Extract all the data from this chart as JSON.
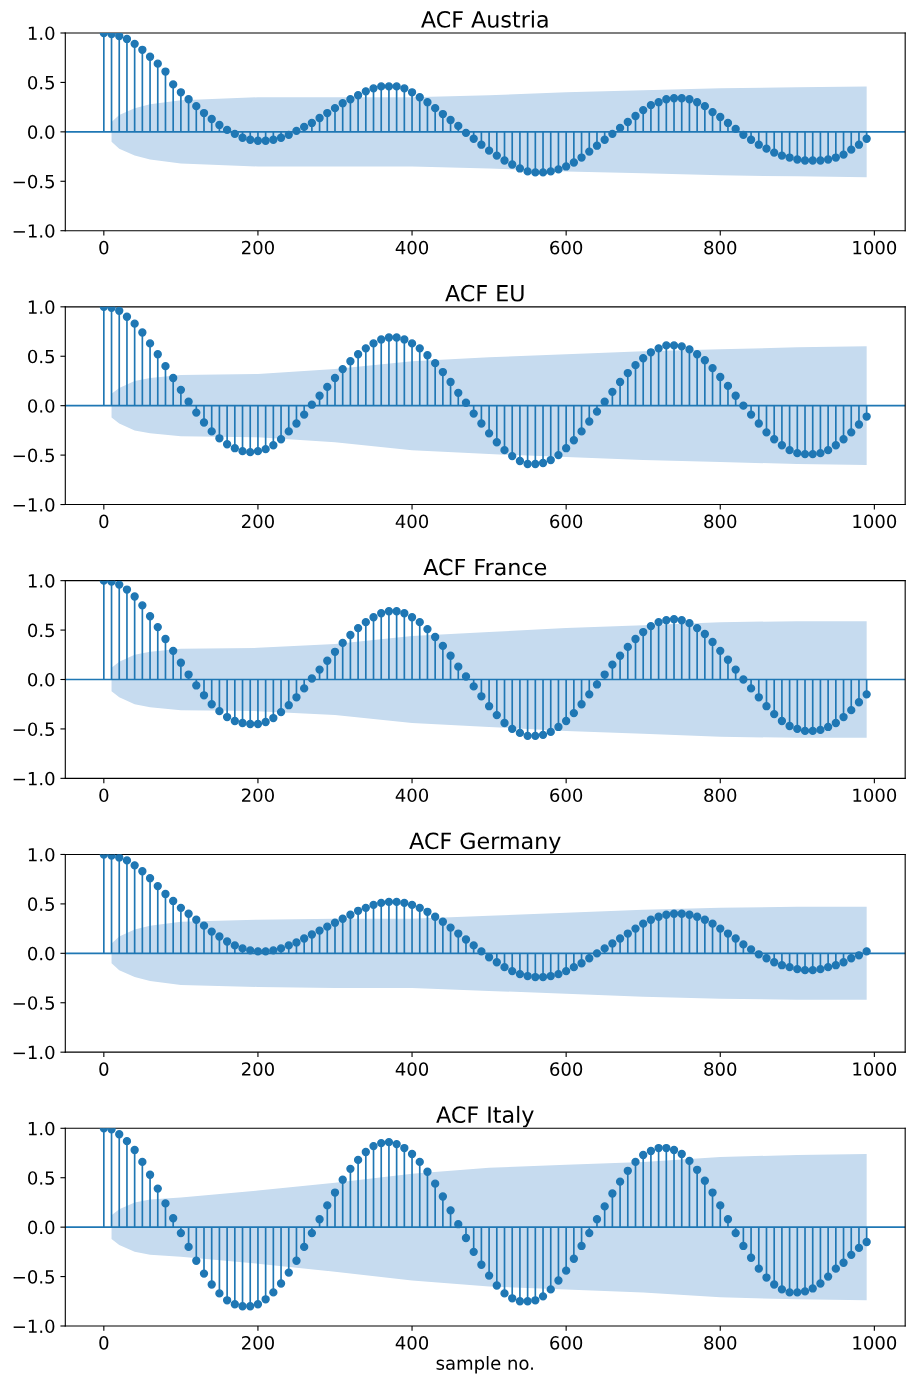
{
  "chart_data": [
    {
      "type": "lollipop",
      "title": "ACF Austria",
      "xlim": [
        -50,
        1040
      ],
      "ylim": [
        -1.0,
        1.0
      ],
      "xticks": [
        0,
        200,
        400,
        600,
        800,
        1000
      ],
      "yticks": [
        {
          "value": -1.0,
          "label": "−1.0"
        },
        {
          "value": -0.5,
          "label": "−0.5"
        },
        {
          "value": 0.0,
          "label": "0.0"
        },
        {
          "value": 0.5,
          "label": "0.5"
        },
        {
          "value": 1.0,
          "label": "1.0"
        }
      ],
      "grid": false,
      "ref_lines": [
        {
          "axis": "y",
          "value": 0,
          "color": "#1f77b4"
        }
      ],
      "x": [
        0,
        10,
        20,
        30,
        40,
        50,
        60,
        70,
        80,
        90,
        100,
        110,
        120,
        130,
        140,
        150,
        160,
        170,
        180,
        190,
        200,
        210,
        220,
        230,
        240,
        250,
        260,
        270,
        280,
        290,
        300,
        310,
        320,
        330,
        340,
        350,
        360,
        370,
        380,
        390,
        400,
        410,
        420,
        430,
        440,
        450,
        460,
        470,
        480,
        490,
        500,
        510,
        520,
        530,
        540,
        550,
        560,
        570,
        580,
        590,
        600,
        610,
        620,
        630,
        640,
        650,
        660,
        670,
        680,
        690,
        700,
        710,
        720,
        730,
        740,
        750,
        760,
        770,
        780,
        790,
        800,
        810,
        820,
        830,
        840,
        850,
        860,
        870,
        880,
        890,
        900,
        910,
        920,
        930,
        940,
        950,
        960,
        970,
        980,
        990
      ],
      "series": [
        {
          "type": "area",
          "color": "#c6dbef",
          "x": [
            10,
            20,
            40,
            60,
            100,
            200,
            300,
            400,
            500,
            600,
            700,
            800,
            900,
            990
          ],
          "values": [
            0.1,
            0.17,
            0.24,
            0.28,
            0.32,
            0.35,
            0.35,
            0.35,
            0.37,
            0.4,
            0.42,
            0.44,
            0.45,
            0.46
          ]
        },
        {
          "type": "area",
          "color": "#c6dbef",
          "x": [
            10,
            20,
            40,
            60,
            100,
            200,
            300,
            400,
            500,
            600,
            700,
            800,
            900,
            990
          ],
          "values": [
            -0.1,
            -0.17,
            -0.24,
            -0.28,
            -0.32,
            -0.35,
            -0.35,
            -0.35,
            -0.37,
            -0.4,
            -0.42,
            -0.44,
            -0.45,
            -0.46
          ]
        },
        {
          "marker": "circle",
          "color": "#1f77b4",
          "values": [
            1.0,
            0.99,
            0.97,
            0.94,
            0.89,
            0.83,
            0.76,
            0.69,
            0.61,
            0.48,
            0.4,
            0.33,
            0.26,
            0.19,
            0.13,
            0.07,
            0.02,
            -0.02,
            -0.06,
            -0.08,
            -0.09,
            -0.09,
            -0.08,
            -0.06,
            -0.03,
            0.01,
            0.05,
            0.09,
            0.14,
            0.19,
            0.24,
            0.29,
            0.33,
            0.37,
            0.41,
            0.44,
            0.46,
            0.46,
            0.46,
            0.44,
            0.4,
            0.35,
            0.3,
            0.24,
            0.18,
            0.12,
            0.06,
            -0.01,
            -0.07,
            -0.13,
            -0.19,
            -0.24,
            -0.29,
            -0.33,
            -0.37,
            -0.4,
            -0.41,
            -0.41,
            -0.4,
            -0.38,
            -0.35,
            -0.31,
            -0.26,
            -0.2,
            -0.14,
            -0.08,
            -0.02,
            0.04,
            0.1,
            0.16,
            0.22,
            0.27,
            0.3,
            0.33,
            0.34,
            0.34,
            0.33,
            0.3,
            0.26,
            0.2,
            0.15,
            0.09,
            0.03,
            -0.03,
            -0.08,
            -0.13,
            -0.17,
            -0.21,
            -0.24,
            -0.26,
            -0.28,
            -0.29,
            -0.29,
            -0.29,
            -0.28,
            -0.26,
            -0.23,
            -0.18,
            -0.13,
            -0.07
          ]
        }
      ]
    },
    {
      "type": "lollipop",
      "title": "ACF EU",
      "xlim": [
        -50,
        1040
      ],
      "ylim": [
        -1.0,
        1.0
      ],
      "xticks": [
        0,
        200,
        400,
        600,
        800,
        1000
      ],
      "yticks": [
        {
          "value": -1.0,
          "label": "−1.0"
        },
        {
          "value": -0.5,
          "label": "−0.5"
        },
        {
          "value": 0.0,
          "label": "0.0"
        },
        {
          "value": 0.5,
          "label": "0.5"
        },
        {
          "value": 1.0,
          "label": "1.0"
        }
      ],
      "grid": false,
      "ref_lines": [
        {
          "axis": "y",
          "value": 0,
          "color": "#1f77b4"
        }
      ],
      "x": [
        0,
        10,
        20,
        30,
        40,
        50,
        60,
        70,
        80,
        90,
        100,
        110,
        120,
        130,
        140,
        150,
        160,
        170,
        180,
        190,
        200,
        210,
        220,
        230,
        240,
        250,
        260,
        270,
        280,
        290,
        300,
        310,
        320,
        330,
        340,
        350,
        360,
        370,
        380,
        390,
        400,
        410,
        420,
        430,
        440,
        450,
        460,
        470,
        480,
        490,
        500,
        510,
        520,
        530,
        540,
        550,
        560,
        570,
        580,
        590,
        600,
        610,
        620,
        630,
        640,
        650,
        660,
        670,
        680,
        690,
        700,
        710,
        720,
        730,
        740,
        750,
        760,
        770,
        780,
        790,
        800,
        810,
        820,
        830,
        840,
        850,
        860,
        870,
        880,
        890,
        900,
        910,
        920,
        930,
        940,
        950,
        960,
        970,
        980,
        990
      ],
      "series": [
        {
          "type": "area",
          "color": "#c6dbef",
          "x": [
            10,
            20,
            40,
            60,
            100,
            200,
            300,
            400,
            500,
            600,
            700,
            800,
            900,
            990
          ],
          "values": [
            0.12,
            0.18,
            0.25,
            0.28,
            0.31,
            0.32,
            0.37,
            0.45,
            0.49,
            0.52,
            0.55,
            0.57,
            0.59,
            0.6
          ]
        },
        {
          "type": "area",
          "color": "#c6dbef",
          "x": [
            10,
            20,
            40,
            60,
            100,
            200,
            300,
            400,
            500,
            600,
            700,
            800,
            900,
            990
          ],
          "values": [
            -0.12,
            -0.18,
            -0.25,
            -0.28,
            -0.31,
            -0.32,
            -0.37,
            -0.45,
            -0.49,
            -0.52,
            -0.55,
            -0.57,
            -0.59,
            -0.6
          ]
        },
        {
          "marker": "circle",
          "color": "#1f77b4",
          "values": [
            1.0,
            0.99,
            0.96,
            0.9,
            0.83,
            0.74,
            0.63,
            0.52,
            0.4,
            0.28,
            0.16,
            0.04,
            -0.07,
            -0.17,
            -0.26,
            -0.33,
            -0.39,
            -0.43,
            -0.46,
            -0.47,
            -0.46,
            -0.44,
            -0.4,
            -0.34,
            -0.26,
            -0.18,
            -0.09,
            0.01,
            0.1,
            0.19,
            0.28,
            0.37,
            0.45,
            0.52,
            0.58,
            0.63,
            0.67,
            0.69,
            0.69,
            0.67,
            0.63,
            0.58,
            0.51,
            0.43,
            0.34,
            0.24,
            0.13,
            0.03,
            -0.08,
            -0.18,
            -0.28,
            -0.37,
            -0.45,
            -0.51,
            -0.56,
            -0.59,
            -0.59,
            -0.58,
            -0.55,
            -0.5,
            -0.43,
            -0.35,
            -0.26,
            -0.16,
            -0.06,
            0.04,
            0.14,
            0.24,
            0.33,
            0.41,
            0.48,
            0.54,
            0.58,
            0.61,
            0.61,
            0.6,
            0.57,
            0.52,
            0.46,
            0.38,
            0.29,
            0.2,
            0.1,
            0.0,
            -0.09,
            -0.18,
            -0.27,
            -0.34,
            -0.4,
            -0.45,
            -0.48,
            -0.49,
            -0.49,
            -0.48,
            -0.45,
            -0.4,
            -0.34,
            -0.27,
            -0.19,
            -0.11
          ]
        }
      ]
    },
    {
      "type": "lollipop",
      "title": "ACF France",
      "xlim": [
        -50,
        1040
      ],
      "ylim": [
        -1.0,
        1.0
      ],
      "xticks": [
        0,
        200,
        400,
        600,
        800,
        1000
      ],
      "yticks": [
        {
          "value": -1.0,
          "label": "−1.0"
        },
        {
          "value": -0.5,
          "label": "−0.5"
        },
        {
          "value": 0.0,
          "label": "0.0"
        },
        {
          "value": 0.5,
          "label": "0.5"
        },
        {
          "value": 1.0,
          "label": "1.0"
        }
      ],
      "grid": false,
      "ref_lines": [
        {
          "axis": "y",
          "value": 0,
          "color": "#1f77b4"
        }
      ],
      "x": [
        0,
        10,
        20,
        30,
        40,
        50,
        60,
        70,
        80,
        90,
        100,
        110,
        120,
        130,
        140,
        150,
        160,
        170,
        180,
        190,
        200,
        210,
        220,
        230,
        240,
        250,
        260,
        270,
        280,
        290,
        300,
        310,
        320,
        330,
        340,
        350,
        360,
        370,
        380,
        390,
        400,
        410,
        420,
        430,
        440,
        450,
        460,
        470,
        480,
        490,
        500,
        510,
        520,
        530,
        540,
        550,
        560,
        570,
        580,
        590,
        600,
        610,
        620,
        630,
        640,
        650,
        660,
        670,
        680,
        690,
        700,
        710,
        720,
        730,
        740,
        750,
        760,
        770,
        780,
        790,
        800,
        810,
        820,
        830,
        840,
        850,
        860,
        870,
        880,
        890,
        900,
        910,
        920,
        930,
        940,
        950,
        960,
        970,
        980,
        990
      ],
      "series": [
        {
          "type": "area",
          "color": "#c6dbef",
          "x": [
            10,
            20,
            40,
            60,
            100,
            200,
            300,
            400,
            500,
            600,
            700,
            800,
            900,
            990
          ],
          "values": [
            0.12,
            0.18,
            0.25,
            0.28,
            0.31,
            0.32,
            0.36,
            0.44,
            0.48,
            0.52,
            0.55,
            0.58,
            0.59,
            0.59
          ]
        },
        {
          "type": "area",
          "color": "#c6dbef",
          "x": [
            10,
            20,
            40,
            60,
            100,
            200,
            300,
            400,
            500,
            600,
            700,
            800,
            900,
            990
          ],
          "values": [
            -0.12,
            -0.18,
            -0.25,
            -0.28,
            -0.31,
            -0.32,
            -0.36,
            -0.44,
            -0.48,
            -0.52,
            -0.55,
            -0.58,
            -0.59,
            -0.59
          ]
        },
        {
          "marker": "circle",
          "color": "#1f77b4",
          "values": [
            1.0,
            0.99,
            0.96,
            0.91,
            0.84,
            0.75,
            0.64,
            0.53,
            0.41,
            0.29,
            0.17,
            0.05,
            -0.06,
            -0.16,
            -0.25,
            -0.32,
            -0.38,
            -0.42,
            -0.44,
            -0.45,
            -0.45,
            -0.43,
            -0.39,
            -0.33,
            -0.26,
            -0.18,
            -0.09,
            0.01,
            0.1,
            0.19,
            0.28,
            0.37,
            0.45,
            0.52,
            0.58,
            0.63,
            0.67,
            0.69,
            0.69,
            0.67,
            0.63,
            0.58,
            0.51,
            0.43,
            0.34,
            0.24,
            0.13,
            0.03,
            -0.07,
            -0.17,
            -0.27,
            -0.36,
            -0.44,
            -0.5,
            -0.54,
            -0.57,
            -0.57,
            -0.56,
            -0.53,
            -0.48,
            -0.42,
            -0.34,
            -0.25,
            -0.15,
            -0.05,
            0.05,
            0.15,
            0.24,
            0.33,
            0.41,
            0.48,
            0.54,
            0.58,
            0.6,
            0.61,
            0.6,
            0.57,
            0.52,
            0.46,
            0.38,
            0.29,
            0.2,
            0.1,
            0.0,
            -0.09,
            -0.18,
            -0.27,
            -0.35,
            -0.42,
            -0.47,
            -0.5,
            -0.52,
            -0.52,
            -0.51,
            -0.48,
            -0.44,
            -0.38,
            -0.31,
            -0.23,
            -0.15
          ]
        }
      ]
    },
    {
      "type": "lollipop",
      "title": "ACF Germany",
      "xlim": [
        -50,
        1040
      ],
      "ylim": [
        -1.0,
        1.0
      ],
      "xticks": [
        0,
        200,
        400,
        600,
        800,
        1000
      ],
      "yticks": [
        {
          "value": -1.0,
          "label": "−1.0"
        },
        {
          "value": -0.5,
          "label": "−0.5"
        },
        {
          "value": 0.0,
          "label": "0.0"
        },
        {
          "value": 0.5,
          "label": "0.5"
        },
        {
          "value": 1.0,
          "label": "1.0"
        }
      ],
      "grid": false,
      "ref_lines": [
        {
          "axis": "y",
          "value": 0,
          "color": "#1f77b4"
        }
      ],
      "x": [
        0,
        10,
        20,
        30,
        40,
        50,
        60,
        70,
        80,
        90,
        100,
        110,
        120,
        130,
        140,
        150,
        160,
        170,
        180,
        190,
        200,
        210,
        220,
        230,
        240,
        250,
        260,
        270,
        280,
        290,
        300,
        310,
        320,
        330,
        340,
        350,
        360,
        370,
        380,
        390,
        400,
        410,
        420,
        430,
        440,
        450,
        460,
        470,
        480,
        490,
        500,
        510,
        520,
        530,
        540,
        550,
        560,
        570,
        580,
        590,
        600,
        610,
        620,
        630,
        640,
        650,
        660,
        670,
        680,
        690,
        700,
        710,
        720,
        730,
        740,
        750,
        760,
        770,
        780,
        790,
        800,
        810,
        820,
        830,
        840,
        850,
        860,
        870,
        880,
        890,
        900,
        910,
        920,
        930,
        940,
        950,
        960,
        970,
        980,
        990
      ],
      "series": [
        {
          "type": "area",
          "color": "#c6dbef",
          "x": [
            10,
            20,
            40,
            60,
            100,
            200,
            300,
            400,
            500,
            600,
            700,
            800,
            900,
            990
          ],
          "values": [
            0.1,
            0.17,
            0.24,
            0.28,
            0.32,
            0.34,
            0.35,
            0.35,
            0.38,
            0.41,
            0.44,
            0.46,
            0.47,
            0.47
          ]
        },
        {
          "type": "area",
          "color": "#c6dbef",
          "x": [
            10,
            20,
            40,
            60,
            100,
            200,
            300,
            400,
            500,
            600,
            700,
            800,
            900,
            990
          ],
          "values": [
            -0.1,
            -0.17,
            -0.24,
            -0.28,
            -0.32,
            -0.34,
            -0.35,
            -0.35,
            -0.38,
            -0.41,
            -0.44,
            -0.46,
            -0.47,
            -0.47
          ]
        },
        {
          "marker": "circle",
          "color": "#1f77b4",
          "values": [
            1.0,
            0.99,
            0.97,
            0.94,
            0.89,
            0.83,
            0.76,
            0.68,
            0.6,
            0.53,
            0.46,
            0.4,
            0.34,
            0.28,
            0.22,
            0.17,
            0.12,
            0.08,
            0.05,
            0.03,
            0.02,
            0.02,
            0.03,
            0.05,
            0.08,
            0.11,
            0.15,
            0.19,
            0.23,
            0.27,
            0.31,
            0.35,
            0.39,
            0.43,
            0.46,
            0.49,
            0.51,
            0.52,
            0.52,
            0.51,
            0.49,
            0.46,
            0.42,
            0.37,
            0.32,
            0.26,
            0.2,
            0.14,
            0.08,
            0.02,
            -0.04,
            -0.09,
            -0.14,
            -0.18,
            -0.21,
            -0.23,
            -0.24,
            -0.24,
            -0.23,
            -0.21,
            -0.18,
            -0.14,
            -0.1,
            -0.05,
            0.0,
            0.05,
            0.1,
            0.15,
            0.2,
            0.25,
            0.3,
            0.34,
            0.37,
            0.39,
            0.4,
            0.4,
            0.39,
            0.37,
            0.34,
            0.3,
            0.25,
            0.2,
            0.15,
            0.09,
            0.04,
            -0.01,
            -0.05,
            -0.09,
            -0.12,
            -0.14,
            -0.16,
            -0.17,
            -0.17,
            -0.16,
            -0.14,
            -0.12,
            -0.09,
            -0.05,
            -0.02,
            0.02
          ]
        }
      ]
    },
    {
      "type": "lollipop",
      "title": "ACF Italy",
      "xlabel": "sample no.",
      "xlim": [
        -50,
        1040
      ],
      "ylim": [
        -1.0,
        1.0
      ],
      "xticks": [
        0,
        200,
        400,
        600,
        800,
        1000
      ],
      "yticks": [
        {
          "value": -1.0,
          "label": "−1.0"
        },
        {
          "value": -0.5,
          "label": "−0.5"
        },
        {
          "value": 0.0,
          "label": "0.0"
        },
        {
          "value": 0.5,
          "label": "0.5"
        },
        {
          "value": 1.0,
          "label": "1.0"
        }
      ],
      "grid": false,
      "ref_lines": [
        {
          "axis": "y",
          "value": 0,
          "color": "#1f77b4"
        }
      ],
      "x": [
        0,
        10,
        20,
        30,
        40,
        50,
        60,
        70,
        80,
        90,
        100,
        110,
        120,
        130,
        140,
        150,
        160,
        170,
        180,
        190,
        200,
        210,
        220,
        230,
        240,
        250,
        260,
        270,
        280,
        290,
        300,
        310,
        320,
        330,
        340,
        350,
        360,
        370,
        380,
        390,
        400,
        410,
        420,
        430,
        440,
        450,
        460,
        470,
        480,
        490,
        500,
        510,
        520,
        530,
        540,
        550,
        560,
        570,
        580,
        590,
        600,
        610,
        620,
        630,
        640,
        650,
        660,
        670,
        680,
        690,
        700,
        710,
        720,
        730,
        740,
        750,
        760,
        770,
        780,
        790,
        800,
        810,
        820,
        830,
        840,
        850,
        860,
        870,
        880,
        890,
        900,
        910,
        920,
        930,
        940,
        950,
        960,
        970,
        980,
        990
      ],
      "series": [
        {
          "type": "area",
          "color": "#c6dbef",
          "x": [
            10,
            20,
            40,
            60,
            100,
            200,
            300,
            400,
            500,
            600,
            700,
            800,
            900,
            990
          ],
          "values": [
            0.12,
            0.18,
            0.25,
            0.28,
            0.3,
            0.37,
            0.45,
            0.54,
            0.6,
            0.63,
            0.66,
            0.71,
            0.73,
            0.74
          ]
        },
        {
          "type": "area",
          "color": "#c6dbef",
          "x": [
            10,
            20,
            40,
            60,
            100,
            200,
            300,
            400,
            500,
            600,
            700,
            800,
            900,
            990
          ],
          "values": [
            -0.12,
            -0.18,
            -0.25,
            -0.28,
            -0.3,
            -0.37,
            -0.45,
            -0.54,
            -0.6,
            -0.63,
            -0.66,
            -0.71,
            -0.73,
            -0.74
          ]
        },
        {
          "marker": "circle",
          "color": "#1f77b4",
          "values": [
            1.0,
            0.99,
            0.94,
            0.87,
            0.78,
            0.66,
            0.53,
            0.39,
            0.24,
            0.09,
            -0.06,
            -0.2,
            -0.34,
            -0.47,
            -0.58,
            -0.67,
            -0.74,
            -0.78,
            -0.8,
            -0.8,
            -0.78,
            -0.73,
            -0.66,
            -0.57,
            -0.46,
            -0.34,
            -0.2,
            -0.06,
            0.08,
            0.22,
            0.35,
            0.48,
            0.59,
            0.68,
            0.76,
            0.82,
            0.85,
            0.86,
            0.84,
            0.8,
            0.74,
            0.66,
            0.56,
            0.44,
            0.31,
            0.17,
            0.03,
            -0.11,
            -0.25,
            -0.38,
            -0.49,
            -0.59,
            -0.67,
            -0.72,
            -0.75,
            -0.75,
            -0.74,
            -0.7,
            -0.63,
            -0.54,
            -0.44,
            -0.32,
            -0.19,
            -0.06,
            0.08,
            0.21,
            0.34,
            0.46,
            0.57,
            0.66,
            0.73,
            0.77,
            0.8,
            0.8,
            0.78,
            0.74,
            0.67,
            0.58,
            0.47,
            0.35,
            0.22,
            0.08,
            -0.06,
            -0.19,
            -0.31,
            -0.42,
            -0.51,
            -0.58,
            -0.63,
            -0.66,
            -0.66,
            -0.65,
            -0.62,
            -0.57,
            -0.5,
            -0.42,
            -0.36,
            -0.28,
            -0.21,
            -0.15
          ]
        }
      ]
    }
  ]
}
